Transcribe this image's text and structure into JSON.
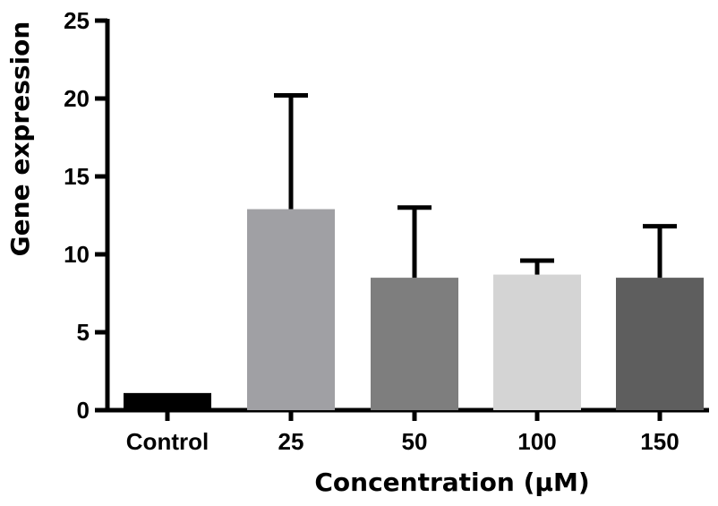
{
  "chart_data": {
    "type": "bar",
    "title": "",
    "xlabel": "Concentration (µM)",
    "ylabel": "Gene expression",
    "ylim": [
      0,
      25
    ],
    "yticks": [
      0,
      5,
      10,
      15,
      20,
      25
    ],
    "categories": [
      "Control",
      "25",
      "50",
      "100",
      "150"
    ],
    "values": [
      1.1,
      12.9,
      8.5,
      8.7,
      8.5
    ],
    "error_upper": [
      0,
      7.3,
      4.5,
      0.9,
      3.3
    ],
    "bar_colors": [
      "#000000",
      "#a0a0a4",
      "#7e7e7e",
      "#d4d4d4",
      "#5e5e5e"
    ],
    "grid": false,
    "legend": "none"
  }
}
